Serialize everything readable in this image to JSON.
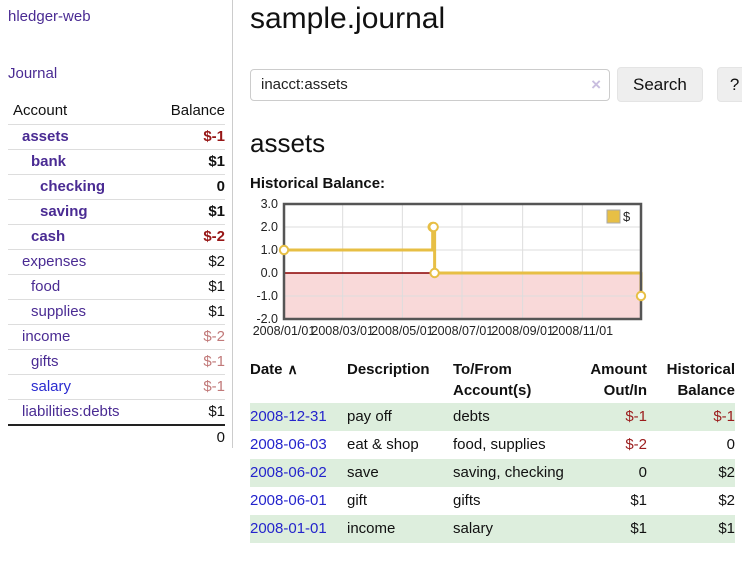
{
  "sidebar": {
    "brand": "hledger-web",
    "journal_label": "Journal",
    "accounts": {
      "account_header": "Account",
      "balance_header": "Balance",
      "rows": [
        {
          "name": "assets",
          "depth": 1,
          "bold": true,
          "balance": "$-1",
          "balance_style": "neg-strong"
        },
        {
          "name": "bank",
          "depth": 2,
          "bold": true,
          "balance": "$1",
          "balance_style": "pos"
        },
        {
          "name": "checking",
          "depth": 3,
          "bold": true,
          "balance": "0",
          "balance_style": "pos"
        },
        {
          "name": "saving",
          "depth": 3,
          "bold": true,
          "balance": "$1",
          "balance_style": "pos"
        },
        {
          "name": "cash",
          "depth": 2,
          "bold": true,
          "balance": "$-2",
          "balance_style": "neg-strong"
        },
        {
          "name": "expenses",
          "depth": 1,
          "bold": false,
          "balance": "$2",
          "balance_style": "pos"
        },
        {
          "name": "food",
          "depth": 2,
          "bold": false,
          "balance": "$1",
          "balance_style": "pos"
        },
        {
          "name": "supplies",
          "depth": 2,
          "bold": false,
          "balance": "$1",
          "balance_style": "pos"
        },
        {
          "name": "income",
          "depth": 1,
          "bold": false,
          "balance": "$-2",
          "balance_style": "neg-soft"
        },
        {
          "name": "gifts",
          "depth": 2,
          "bold": false,
          "balance": "$-1",
          "balance_style": "neg-soft"
        },
        {
          "name": "salary",
          "depth": 2,
          "bold": false,
          "link_style": "blue",
          "balance": "$-1",
          "balance_style": "neg-soft"
        },
        {
          "name": "liabilities:debts",
          "depth": 1,
          "bold": false,
          "balance": "$1",
          "balance_style": "pos"
        }
      ],
      "total": "0"
    }
  },
  "header": {
    "title": "sample.journal"
  },
  "search": {
    "value": "inacct:assets",
    "clear_icon": "×",
    "button_label": "Search",
    "help_label": "?"
  },
  "account_page": {
    "heading": "assets",
    "chart_label": "Historical Balance:"
  },
  "chart_data": {
    "type": "line",
    "step": true,
    "title": "Historical Balance",
    "series": [
      {
        "name": "$",
        "color": "#e7bf45",
        "points": [
          [
            "2008-01-01",
            1
          ],
          [
            "2008-06-01",
            2
          ],
          [
            "2008-06-02",
            2
          ],
          [
            "2008-06-03",
            0
          ],
          [
            "2008-12-31",
            -1
          ]
        ]
      }
    ],
    "x_ticks": [
      "2008/01/01",
      "2008/03/01",
      "2008/05/01",
      "2008/07/01",
      "2008/09/01",
      "2008/11/01"
    ],
    "y_ticks": [
      "3.0",
      "2.0",
      "1.0",
      "0.0",
      "-1.0",
      "-2.0"
    ],
    "ylim": [
      -2,
      3
    ],
    "x_range": [
      "2008-01-01",
      "2008-12-31"
    ],
    "grid": true,
    "negative_region_fill": "#f9d9d9",
    "zero_line_color": "#8b0000",
    "plot_border_color": "#555",
    "legend": {
      "label": "$",
      "position": "top-right"
    }
  },
  "register_table": {
    "sort_icon": "∧",
    "columns": [
      {
        "label": "Date",
        "sub": "",
        "align": "left",
        "sortable": true
      },
      {
        "label": "Description",
        "sub": "",
        "align": "left"
      },
      {
        "label": "To/From",
        "sub": "Account(s)",
        "align": "left"
      },
      {
        "label": "Amount",
        "sub": "Out/In",
        "align": "right"
      },
      {
        "label": "Historical",
        "sub": "Balance",
        "align": "right"
      }
    ],
    "rows": [
      {
        "date": "2008-12-31",
        "description": "pay off",
        "accounts": "debts",
        "amount": "$-1",
        "amount_neg": true,
        "balance": "$-1",
        "balance_neg": true
      },
      {
        "date": "2008-06-03",
        "description": "eat & shop",
        "accounts": "food, supplies",
        "amount": "$-2",
        "amount_neg": true,
        "balance": "0",
        "balance_neg": false
      },
      {
        "date": "2008-06-02",
        "description": "save",
        "accounts": "saving, checking",
        "amount": "0",
        "amount_neg": false,
        "balance": "$2",
        "balance_neg": false
      },
      {
        "date": "2008-06-01",
        "description": "gift",
        "accounts": "gifts",
        "amount": "$1",
        "amount_neg": false,
        "balance": "$2",
        "balance_neg": false
      },
      {
        "date": "2008-01-01",
        "description": "income",
        "accounts": "salary",
        "amount": "$1",
        "amount_neg": false,
        "balance": "$1",
        "balance_neg": false
      }
    ]
  }
}
